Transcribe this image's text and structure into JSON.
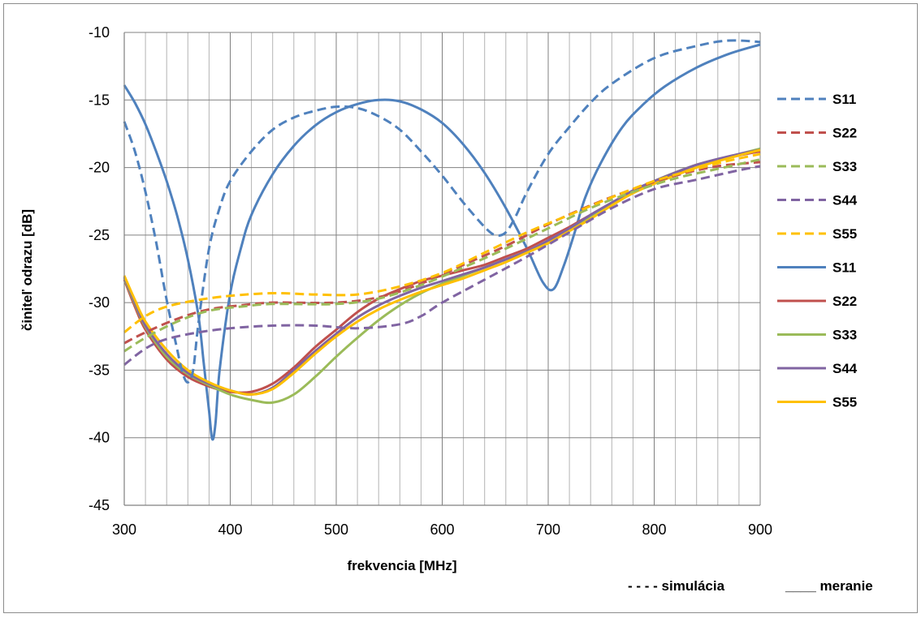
{
  "chart_data": {
    "type": "line",
    "xlabel": "frekvencia [MHz]",
    "ylabel": "činiteľ odrazu [dB]",
    "xlim": [
      300,
      900
    ],
    "ylim": [
      -45,
      -10
    ],
    "x_ticks": [
      "300",
      "400",
      "500",
      "600",
      "700",
      "800",
      "900"
    ],
    "y_ticks": [
      "-10",
      "-15",
      "-20",
      "-25",
      "-30",
      "-35",
      "-40",
      "-45"
    ],
    "grid": true,
    "legend_position": "right",
    "notes": {
      "simulation": "- - - -  simulácia",
      "measurement": "____ meranie"
    },
    "series": [
      {
        "name": "S11",
        "kind": "simulation",
        "color": "#4f81bd",
        "points": [
          [
            300,
            -16.6
          ],
          [
            310,
            -18.8
          ],
          [
            320,
            -21.8
          ],
          [
            330,
            -25.5
          ],
          [
            340,
            -29.8
          ],
          [
            350,
            -33.5
          ],
          [
            355,
            -35.2
          ],
          [
            360,
            -35.9
          ],
          [
            365,
            -35.0
          ],
          [
            370,
            -31.5
          ],
          [
            380,
            -26.0
          ],
          [
            390,
            -23.0
          ],
          [
            400,
            -21.0
          ],
          [
            420,
            -18.8
          ],
          [
            440,
            -17.2
          ],
          [
            460,
            -16.3
          ],
          [
            480,
            -15.8
          ],
          [
            500,
            -15.5
          ],
          [
            520,
            -15.6
          ],
          [
            540,
            -16.2
          ],
          [
            560,
            -17.2
          ],
          [
            580,
            -18.8
          ],
          [
            600,
            -20.6
          ],
          [
            620,
            -22.6
          ],
          [
            640,
            -24.4
          ],
          [
            650,
            -25.0
          ],
          [
            660,
            -24.8
          ],
          [
            670,
            -23.5
          ],
          [
            680,
            -21.8
          ],
          [
            700,
            -19.0
          ],
          [
            720,
            -17.0
          ],
          [
            740,
            -15.2
          ],
          [
            760,
            -13.8
          ],
          [
            800,
            -11.9
          ],
          [
            840,
            -11.0
          ],
          [
            870,
            -10.6
          ],
          [
            900,
            -10.7
          ]
        ]
      },
      {
        "name": "S22",
        "kind": "simulation",
        "color": "#c0504d",
        "points": [
          [
            300,
            -33.0
          ],
          [
            320,
            -32.2
          ],
          [
            350,
            -31.2
          ],
          [
            380,
            -30.5
          ],
          [
            410,
            -30.2
          ],
          [
            440,
            -30.0
          ],
          [
            500,
            -30.0
          ],
          [
            540,
            -29.6
          ],
          [
            580,
            -28.6
          ],
          [
            620,
            -27.2
          ],
          [
            660,
            -25.8
          ],
          [
            700,
            -24.2
          ],
          [
            740,
            -22.8
          ],
          [
            780,
            -21.6
          ],
          [
            820,
            -20.6
          ],
          [
            860,
            -19.9
          ],
          [
            900,
            -19.6
          ]
        ]
      },
      {
        "name": "S33",
        "kind": "simulation",
        "color": "#9bbb59",
        "points": [
          [
            300,
            -33.6
          ],
          [
            320,
            -32.6
          ],
          [
            350,
            -31.4
          ],
          [
            380,
            -30.6
          ],
          [
            410,
            -30.3
          ],
          [
            440,
            -30.1
          ],
          [
            500,
            -30.1
          ],
          [
            540,
            -29.7
          ],
          [
            580,
            -28.7
          ],
          [
            620,
            -27.4
          ],
          [
            660,
            -26.0
          ],
          [
            700,
            -24.5
          ],
          [
            740,
            -23.0
          ],
          [
            780,
            -21.8
          ],
          [
            820,
            -20.8
          ],
          [
            860,
            -20.1
          ],
          [
            900,
            -19.4
          ]
        ]
      },
      {
        "name": "S44",
        "kind": "simulation",
        "color": "#8064a2",
        "points": [
          [
            300,
            -34.6
          ],
          [
            320,
            -33.4
          ],
          [
            340,
            -32.7
          ],
          [
            370,
            -32.2
          ],
          [
            400,
            -31.9
          ],
          [
            440,
            -31.7
          ],
          [
            480,
            -31.7
          ],
          [
            520,
            -31.9
          ],
          [
            560,
            -31.6
          ],
          [
            580,
            -31.0
          ],
          [
            600,
            -30.0
          ],
          [
            640,
            -28.3
          ],
          [
            680,
            -26.6
          ],
          [
            720,
            -24.8
          ],
          [
            760,
            -23.0
          ],
          [
            800,
            -21.6
          ],
          [
            840,
            -20.9
          ],
          [
            880,
            -20.2
          ],
          [
            900,
            -19.9
          ]
        ]
      },
      {
        "name": "S55",
        "kind": "simulation",
        "color": "#ffc000",
        "points": [
          [
            300,
            -32.2
          ],
          [
            320,
            -31.0
          ],
          [
            340,
            -30.3
          ],
          [
            370,
            -29.8
          ],
          [
            400,
            -29.5
          ],
          [
            440,
            -29.3
          ],
          [
            480,
            -29.4
          ],
          [
            520,
            -29.4
          ],
          [
            560,
            -28.8
          ],
          [
            600,
            -27.8
          ],
          [
            640,
            -26.3
          ],
          [
            680,
            -24.8
          ],
          [
            720,
            -23.5
          ],
          [
            760,
            -22.2
          ],
          [
            800,
            -21.0
          ],
          [
            840,
            -20.1
          ],
          [
            870,
            -19.5
          ],
          [
            900,
            -19.0
          ]
        ]
      },
      {
        "name": "S11",
        "kind": "measurement",
        "color": "#4f81bd",
        "points": [
          [
            300,
            -13.9
          ],
          [
            310,
            -15.2
          ],
          [
            320,
            -16.8
          ],
          [
            330,
            -18.8
          ],
          [
            340,
            -21.0
          ],
          [
            350,
            -23.6
          ],
          [
            360,
            -26.8
          ],
          [
            370,
            -31.0
          ],
          [
            375,
            -34.5
          ],
          [
            380,
            -38.0
          ],
          [
            383,
            -40.1
          ],
          [
            386,
            -39.0
          ],
          [
            390,
            -35.0
          ],
          [
            400,
            -29.3
          ],
          [
            410,
            -26.0
          ],
          [
            420,
            -23.5
          ],
          [
            440,
            -20.5
          ],
          [
            460,
            -18.4
          ],
          [
            480,
            -16.9
          ],
          [
            500,
            -15.9
          ],
          [
            520,
            -15.3
          ],
          [
            540,
            -15.0
          ],
          [
            560,
            -15.1
          ],
          [
            580,
            -15.7
          ],
          [
            600,
            -16.7
          ],
          [
            620,
            -18.3
          ],
          [
            640,
            -20.4
          ],
          [
            660,
            -23.0
          ],
          [
            680,
            -26.0
          ],
          [
            695,
            -28.5
          ],
          [
            705,
            -29.0
          ],
          [
            715,
            -27.2
          ],
          [
            725,
            -24.8
          ],
          [
            735,
            -22.2
          ],
          [
            750,
            -19.6
          ],
          [
            770,
            -17.0
          ],
          [
            790,
            -15.3
          ],
          [
            810,
            -14.0
          ],
          [
            840,
            -12.6
          ],
          [
            870,
            -11.6
          ],
          [
            900,
            -10.9
          ]
        ]
      },
      {
        "name": "S22",
        "kind": "measurement",
        "color": "#c0504d",
        "points": [
          [
            300,
            -28.3
          ],
          [
            310,
            -30.3
          ],
          [
            320,
            -32.0
          ],
          [
            340,
            -34.2
          ],
          [
            360,
            -35.5
          ],
          [
            380,
            -36.2
          ],
          [
            400,
            -36.6
          ],
          [
            420,
            -36.6
          ],
          [
            440,
            -36.0
          ],
          [
            460,
            -34.8
          ],
          [
            480,
            -33.3
          ],
          [
            500,
            -32.0
          ],
          [
            520,
            -30.7
          ],
          [
            540,
            -29.7
          ],
          [
            560,
            -29.0
          ],
          [
            580,
            -28.4
          ],
          [
            600,
            -28.0
          ],
          [
            620,
            -27.6
          ],
          [
            640,
            -27.2
          ],
          [
            660,
            -26.6
          ],
          [
            680,
            -26.0
          ],
          [
            700,
            -25.2
          ],
          [
            720,
            -24.4
          ],
          [
            740,
            -23.5
          ],
          [
            760,
            -22.6
          ],
          [
            780,
            -21.8
          ],
          [
            800,
            -21.1
          ],
          [
            840,
            -19.8
          ],
          [
            880,
            -19.1
          ],
          [
            900,
            -18.8
          ]
        ]
      },
      {
        "name": "S33",
        "kind": "measurement",
        "color": "#9bbb59",
        "points": [
          [
            300,
            -28.2
          ],
          [
            310,
            -30.1
          ],
          [
            320,
            -31.8
          ],
          [
            340,
            -34.0
          ],
          [
            360,
            -35.3
          ],
          [
            380,
            -36.1
          ],
          [
            400,
            -36.8
          ],
          [
            420,
            -37.2
          ],
          [
            440,
            -37.4
          ],
          [
            460,
            -36.8
          ],
          [
            480,
            -35.5
          ],
          [
            500,
            -34.0
          ],
          [
            520,
            -32.6
          ],
          [
            540,
            -31.3
          ],
          [
            560,
            -30.2
          ],
          [
            580,
            -29.3
          ],
          [
            600,
            -28.6
          ],
          [
            620,
            -28.0
          ],
          [
            640,
            -27.4
          ],
          [
            660,
            -26.8
          ],
          [
            680,
            -26.2
          ],
          [
            700,
            -25.5
          ],
          [
            720,
            -24.6
          ],
          [
            740,
            -23.6
          ],
          [
            760,
            -22.6
          ],
          [
            780,
            -21.8
          ],
          [
            800,
            -21.0
          ],
          [
            840,
            -19.8
          ],
          [
            880,
            -19.0
          ],
          [
            900,
            -18.6
          ]
        ]
      },
      {
        "name": "S44",
        "kind": "measurement",
        "color": "#8064a2",
        "points": [
          [
            300,
            -28.1
          ],
          [
            310,
            -30.0
          ],
          [
            320,
            -31.7
          ],
          [
            340,
            -33.8
          ],
          [
            360,
            -35.2
          ],
          [
            380,
            -36.0
          ],
          [
            400,
            -36.5
          ],
          [
            420,
            -36.8
          ],
          [
            440,
            -36.3
          ],
          [
            460,
            -35.0
          ],
          [
            480,
            -33.6
          ],
          [
            500,
            -32.3
          ],
          [
            520,
            -31.1
          ],
          [
            540,
            -30.2
          ],
          [
            560,
            -29.5
          ],
          [
            580,
            -28.9
          ],
          [
            600,
            -28.4
          ],
          [
            620,
            -27.9
          ],
          [
            640,
            -27.4
          ],
          [
            660,
            -26.8
          ],
          [
            680,
            -26.2
          ],
          [
            700,
            -25.4
          ],
          [
            720,
            -24.5
          ],
          [
            740,
            -23.5
          ],
          [
            760,
            -22.6
          ],
          [
            780,
            -21.7
          ],
          [
            800,
            -21.0
          ],
          [
            840,
            -19.8
          ],
          [
            880,
            -19.0
          ],
          [
            900,
            -18.7
          ]
        ]
      },
      {
        "name": "S55",
        "kind": "measurement",
        "color": "#ffc000",
        "points": [
          [
            300,
            -28.0
          ],
          [
            310,
            -29.8
          ],
          [
            320,
            -31.4
          ],
          [
            340,
            -33.5
          ],
          [
            360,
            -35.0
          ],
          [
            380,
            -35.9
          ],
          [
            400,
            -36.5
          ],
          [
            420,
            -36.8
          ],
          [
            440,
            -36.4
          ],
          [
            460,
            -35.2
          ],
          [
            480,
            -33.8
          ],
          [
            500,
            -32.5
          ],
          [
            520,
            -31.4
          ],
          [
            540,
            -30.5
          ],
          [
            560,
            -29.8
          ],
          [
            580,
            -29.2
          ],
          [
            600,
            -28.7
          ],
          [
            620,
            -28.2
          ],
          [
            640,
            -27.6
          ],
          [
            660,
            -27.0
          ],
          [
            680,
            -26.3
          ],
          [
            700,
            -25.6
          ],
          [
            720,
            -24.7
          ],
          [
            740,
            -23.8
          ],
          [
            760,
            -22.8
          ],
          [
            780,
            -21.9
          ],
          [
            800,
            -21.2
          ],
          [
            840,
            -20.0
          ],
          [
            880,
            -19.1
          ],
          [
            900,
            -18.7
          ]
        ]
      }
    ]
  }
}
